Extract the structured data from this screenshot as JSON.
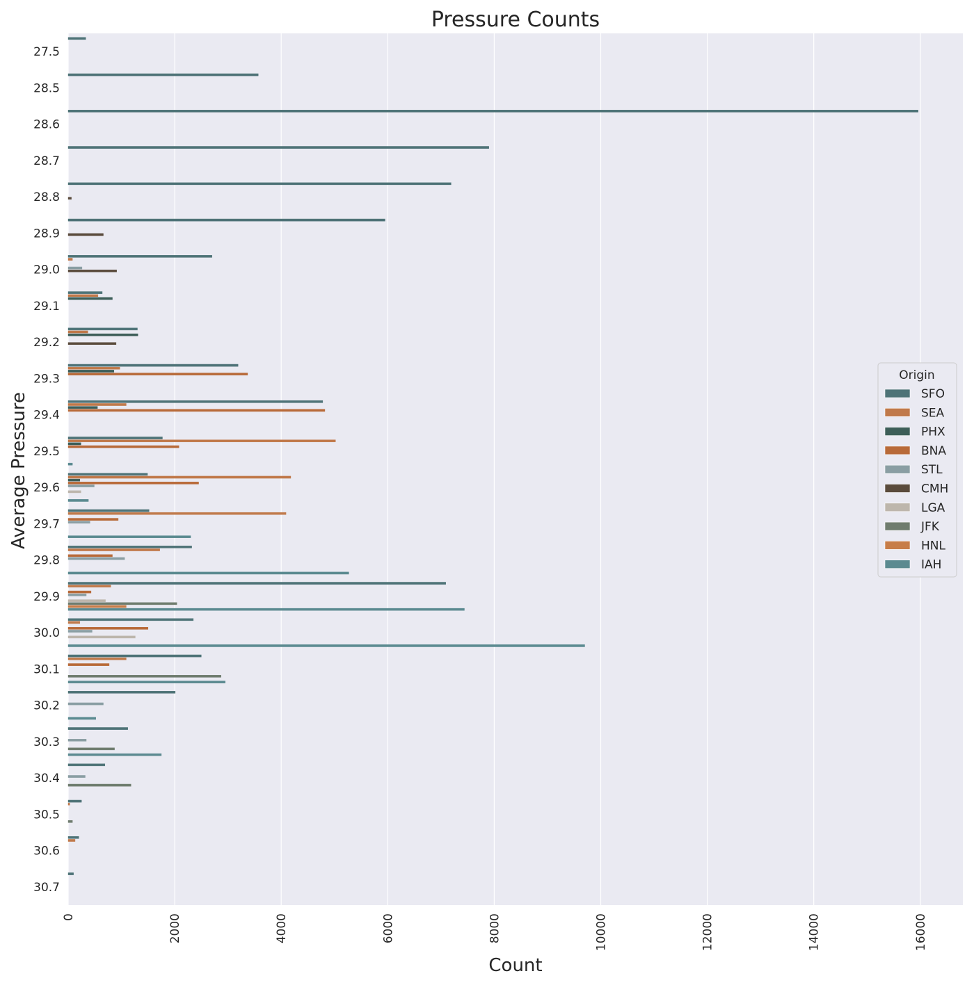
{
  "chart_data": {
    "type": "bar",
    "orientation": "horizontal",
    "title": "Pressure Counts",
    "xlabel": "Count",
    "ylabel": "Average Pressure",
    "xlim": [
      0,
      16800
    ],
    "xticks": [
      0,
      2000,
      4000,
      6000,
      8000,
      10000,
      12000,
      14000,
      16000
    ],
    "grid": true,
    "legend": {
      "title": "Origin",
      "placement": "center-right"
    },
    "categories": [
      "27.5",
      "28.5",
      "28.6",
      "28.7",
      "28.8",
      "28.9",
      "29.0",
      "29.1",
      "29.2",
      "29.3",
      "29.4",
      "29.5",
      "29.6",
      "29.7",
      "29.8",
      "29.9",
      "30.0",
      "30.1",
      "30.2",
      "30.3",
      "30.4",
      "30.5",
      "30.6",
      "30.7"
    ],
    "series": [
      {
        "name": "SFO",
        "color": "#4e7377",
        "values": [
          330,
          3570,
          15960,
          7900,
          7190,
          5950,
          2700,
          640,
          1300,
          3190,
          4780,
          1770,
          1490,
          1520,
          2320,
          7090,
          2350,
          2500,
          2010,
          1120,
          690,
          250,
          200,
          100
        ]
      },
      {
        "name": "SEA",
        "color": "#c0794a",
        "values": [
          0,
          0,
          0,
          0,
          0,
          0,
          80,
          560,
          370,
          970,
          1090,
          5020,
          4180,
          4090,
          1720,
          800,
          220,
          1090,
          0,
          0,
          0,
          30,
          130,
          0
        ]
      },
      {
        "name": "PHX",
        "color": "#3d5e58",
        "values": [
          0,
          0,
          0,
          0,
          0,
          0,
          0,
          830,
          1310,
          860,
          550,
          240,
          220,
          0,
          0,
          0,
          0,
          0,
          0,
          0,
          0,
          0,
          0,
          0
        ]
      },
      {
        "name": "BNA",
        "color": "#b86a39",
        "values": [
          0,
          0,
          0,
          0,
          0,
          0,
          0,
          0,
          0,
          3370,
          4820,
          2080,
          2450,
          940,
          830,
          430,
          1500,
          770,
          0,
          0,
          0,
          0,
          0,
          0
        ]
      },
      {
        "name": "STL",
        "color": "#8a9ea3",
        "values": [
          0,
          0,
          0,
          0,
          0,
          0,
          260,
          0,
          0,
          0,
          0,
          0,
          490,
          410,
          1060,
          340,
          450,
          0,
          660,
          340,
          320,
          0,
          0,
          0
        ]
      },
      {
        "name": "CMH",
        "color": "#5a4b3c",
        "values": [
          0,
          0,
          0,
          0,
          60,
          660,
          910,
          0,
          900,
          0,
          0,
          0,
          0,
          0,
          0,
          0,
          0,
          0,
          0,
          0,
          0,
          0,
          0,
          0
        ]
      },
      {
        "name": "LGA",
        "color": "#bdb6ac",
        "values": [
          0,
          0,
          0,
          0,
          0,
          0,
          0,
          0,
          0,
          0,
          0,
          0,
          240,
          0,
          0,
          700,
          1260,
          0,
          0,
          0,
          0,
          0,
          0,
          0
        ]
      },
      {
        "name": "JFK",
        "color": "#6f7c6e",
        "values": [
          0,
          0,
          0,
          0,
          0,
          0,
          0,
          0,
          0,
          0,
          0,
          0,
          0,
          0,
          0,
          2040,
          0,
          2870,
          0,
          870,
          1180,
          80,
          0,
          0
        ]
      },
      {
        "name": "HNL",
        "color": "#c77d48",
        "values": [
          0,
          0,
          0,
          0,
          0,
          0,
          0,
          0,
          0,
          0,
          0,
          0,
          0,
          0,
          0,
          1090,
          0,
          0,
          0,
          0,
          0,
          0,
          0,
          0
        ]
      },
      {
        "name": "IAH",
        "color": "#5b8a90",
        "values": [
          0,
          0,
          0,
          0,
          0,
          0,
          0,
          0,
          0,
          0,
          0,
          80,
          380,
          2300,
          5270,
          7440,
          9700,
          2950,
          520,
          1750,
          0,
          0,
          0,
          0
        ]
      }
    ]
  }
}
